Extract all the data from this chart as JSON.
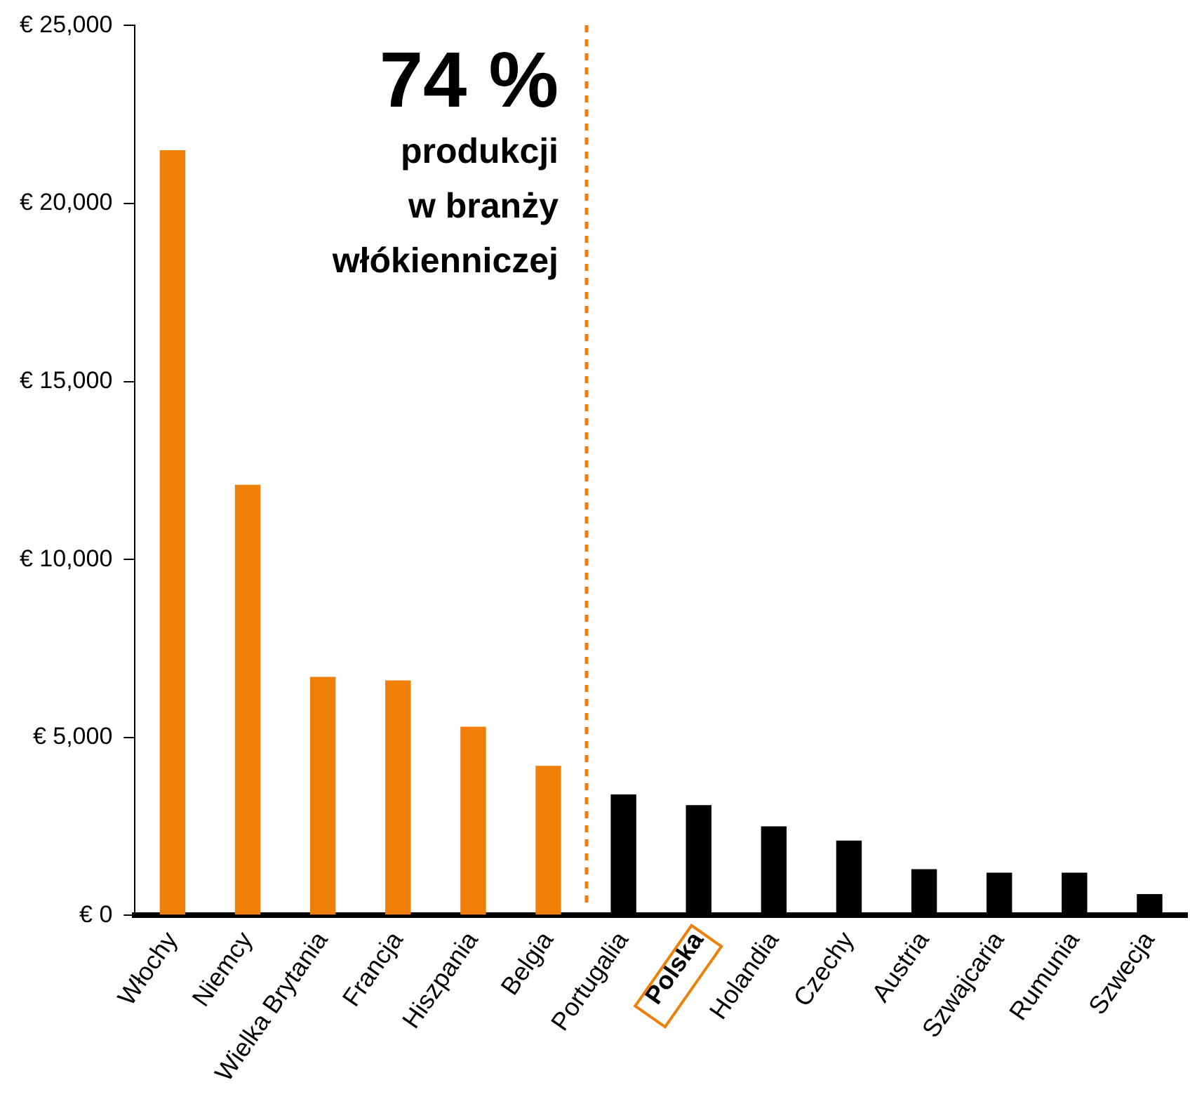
{
  "chart_data": {
    "type": "bar",
    "categories": [
      "Włochy",
      "Niemcy",
      "Wielka Brytania",
      "Francja",
      "Hiszpania",
      "Belgia",
      "Portugalia",
      "Polska",
      "Holandia",
      "Czechy",
      "Austria",
      "Szwajcaria",
      "Rumunia",
      "Szwecja"
    ],
    "values": [
      21500,
      12100,
      6700,
      6600,
      5300,
      4200,
      3400,
      3100,
      2500,
      2100,
      1300,
      1200,
      1200,
      600
    ],
    "colors": [
      "#f07f09",
      "#f07f09",
      "#f07f09",
      "#f07f09",
      "#f07f09",
      "#f07f09",
      "#000000",
      "#000000",
      "#000000",
      "#000000",
      "#000000",
      "#000000",
      "#000000",
      "#000000"
    ],
    "ylim": [
      0,
      25000
    ],
    "yticks": [
      {
        "value": 0,
        "label": "€ 0"
      },
      {
        "value": 5000,
        "label": "€ 5,000"
      },
      {
        "value": 10000,
        "label": "€ 10,000"
      },
      {
        "value": 15000,
        "label": "€ 15,000"
      },
      {
        "value": 20000,
        "label": "€ 20,000"
      },
      {
        "value": 25000,
        "label": "€ 25,000"
      }
    ],
    "annotations": [
      "74 %",
      "produkcji",
      "w branży",
      "włókienniczej"
    ]
  }
}
